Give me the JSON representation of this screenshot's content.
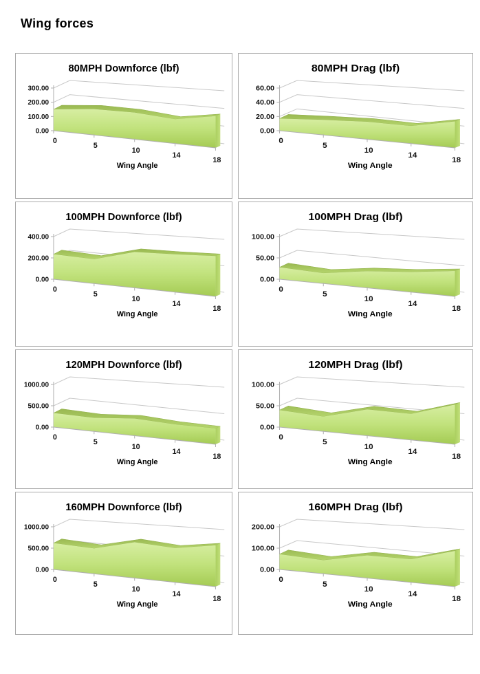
{
  "page": {
    "title": "Wing forces"
  },
  "colors": {
    "area_gradient_top": "#d7eea2",
    "area_gradient_mid": "#c1e27c",
    "area_gradient_bottom": "#a4cb53",
    "area_top_face_dark": "#9ab952",
    "area_top_face_light": "#b4d46c",
    "area_side_face_dark": "#aace5f",
    "area_side_face_light": "#c2e07b",
    "gridline": "#c8c8c8",
    "axis": "#b0b0b0",
    "panel_border": "#a9a9a9",
    "tick_text": "#111111",
    "title_text": "#000000"
  },
  "chart_data": [
    {
      "type": "area",
      "variant": "3d",
      "title": "80MPH Downforce (lbf)",
      "xlabel": "Wing Angle",
      "categories": [
        0,
        5,
        10,
        14,
        18
      ],
      "values": [
        150,
        172,
        168,
        145,
        180
      ],
      "ylim": [
        0,
        300
      ],
      "y_ticks": [
        "300.00",
        "200.00",
        "100.00",
        "0.00"
      ],
      "grid": true,
      "legend": "none"
    },
    {
      "type": "area",
      "variant": "3d",
      "title": "80MPH Drag (lbf)",
      "xlabel": "Wing Angle",
      "categories": [
        0,
        5,
        10,
        14,
        18
      ],
      "values": [
        17,
        20,
        22,
        21,
        30
      ],
      "ylim": [
        0,
        60
      ],
      "y_ticks": [
        "60.00",
        "40.00",
        "20.00",
        "0.00"
      ],
      "grid": true,
      "legend": "none"
    },
    {
      "type": "area",
      "variant": "3d",
      "title": "100MPH Downforce (lbf)",
      "xlabel": "Wing Angle",
      "categories": [
        0,
        5,
        10,
        14,
        18
      ],
      "values": [
        235,
        215,
        300,
        300,
        305
      ],
      "ylim": [
        0,
        400
      ],
      "y_ticks": [
        "400.00",
        "200.00",
        "0.00"
      ],
      "grid": true,
      "legend": "none"
    },
    {
      "type": "area",
      "variant": "3d",
      "title": "100MPH Drag (lbf)",
      "xlabel": "Wing Angle",
      "categories": [
        0,
        5,
        10,
        14,
        18
      ],
      "values": [
        28,
        23,
        35,
        40,
        48
      ],
      "ylim": [
        0,
        100
      ],
      "y_ticks": [
        "100.00",
        "50.00",
        "0.00"
      ],
      "grid": true,
      "legend": "none"
    },
    {
      "type": "area",
      "variant": "3d",
      "title": "120MPH Downforce (lbf)",
      "xlabel": "Wing Angle",
      "categories": [
        0,
        5,
        10,
        14,
        18
      ],
      "values": [
        330,
        300,
        360,
        310,
        300
      ],
      "ylim": [
        0,
        1000
      ],
      "y_ticks": [
        "1000.00",
        "500.00",
        "0.00"
      ],
      "grid": true,
      "legend": "none"
    },
    {
      "type": "area",
      "variant": "3d",
      "title": "120MPH Drag (lbf)",
      "xlabel": "Wing Angle",
      "categories": [
        0,
        5,
        10,
        14,
        18
      ],
      "values": [
        40,
        33,
        55,
        52,
        75
      ],
      "ylim": [
        0,
        100
      ],
      "y_ticks": [
        "100.00",
        "50.00",
        "0.00"
      ],
      "grid": true,
      "legend": "none"
    },
    {
      "type": "area",
      "variant": "3d",
      "title": "160MPH Downforce (lbf)",
      "xlabel": "Wing Angle",
      "categories": [
        0,
        5,
        10,
        14,
        18
      ],
      "values": [
        620,
        560,
        750,
        680,
        780
      ],
      "ylim": [
        0,
        1000
      ],
      "y_ticks": [
        "1000.00",
        "500.00",
        "0.00"
      ],
      "grid": true,
      "legend": "none"
    },
    {
      "type": "area",
      "variant": "3d",
      "title": "160MPH Drag (lbf)",
      "xlabel": "Wing Angle",
      "categories": [
        0,
        5,
        10,
        14,
        18
      ],
      "values": [
        72,
        60,
        95,
        92,
        135
      ],
      "ylim": [
        0,
        200
      ],
      "y_ticks": [
        "200.00",
        "100.00",
        "0.00"
      ],
      "grid": true,
      "legend": "none"
    }
  ]
}
